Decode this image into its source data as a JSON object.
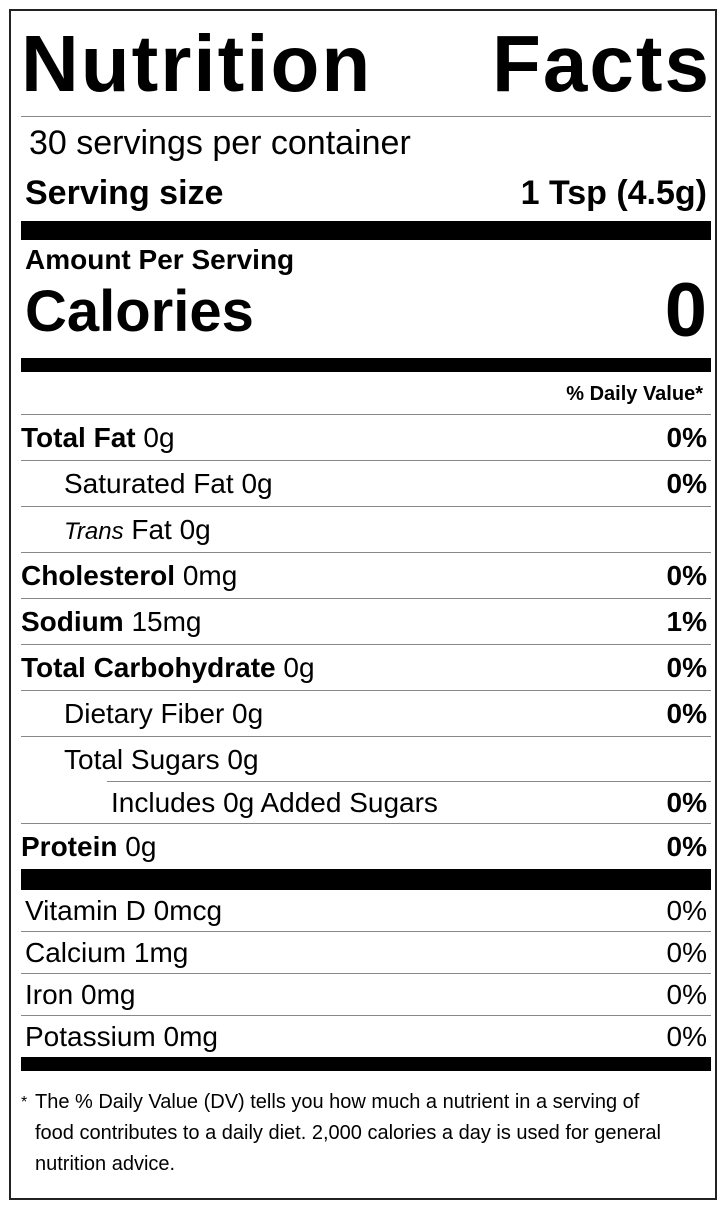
{
  "title": "Nutrition Facts",
  "servings_per_container": "30 servings per container",
  "serving_size": {
    "label": "Serving size",
    "value": "1 Tsp (4.5g)"
  },
  "amount_per_serving": "Amount Per Serving",
  "calories": {
    "label": "Calories",
    "value": "0"
  },
  "daily_value_header": "% Daily Value*",
  "nutrients": [
    {
      "name": "Total Fat",
      "amount": "0g",
      "dv": "0%"
    },
    {
      "name": "Saturated Fat",
      "amount": "0g",
      "dv": "0%"
    },
    {
      "name": "Trans",
      "suffix": "Fat",
      "amount": "0g",
      "dv": ""
    },
    {
      "name": "Cholesterol",
      "amount": "0mg",
      "dv": "0%"
    },
    {
      "name": "Sodium",
      "amount": "15mg",
      "dv": "1%"
    },
    {
      "name": "Total Carbohydrate",
      "amount": "0g",
      "dv": "0%"
    },
    {
      "name": "Dietary Fiber",
      "amount": "0g",
      "dv": "0%"
    },
    {
      "name": "Total Sugars",
      "amount": "0g",
      "dv": ""
    },
    {
      "name": "Includes 0g Added Sugars",
      "amount": "",
      "dv": "0%"
    },
    {
      "name": "Protein",
      "amount": "0g",
      "dv": "0%"
    }
  ],
  "vitamins": [
    {
      "label": "Vitamin D 0mcg",
      "dv": "0%"
    },
    {
      "label": "Calcium 1mg",
      "dv": "0%"
    },
    {
      "label": "Iron 0mg",
      "dv": "0%"
    },
    {
      "label": "Potassium 0mg",
      "dv": "0%"
    }
  ],
  "footnote": {
    "star": "*",
    "text": "The % Daily Value (DV) tells you how much a nutrient in a serving of food contributes to a daily diet. 2,000 calories a day is used for general nutrition advice."
  }
}
